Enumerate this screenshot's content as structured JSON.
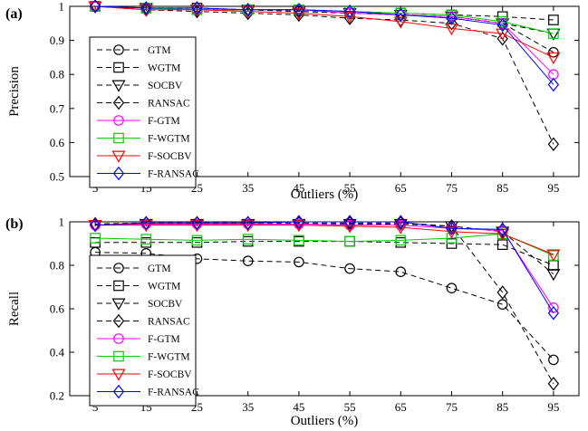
{
  "chart_data": [
    {
      "type": "line",
      "panel_label": "(a)",
      "xlabel": "Outliers (%)",
      "ylabel": "Precision",
      "x": [
        5,
        15,
        25,
        35,
        45,
        55,
        65,
        75,
        85,
        95
      ],
      "xticks": [
        "5",
        "15",
        "25",
        "35",
        "45",
        "55",
        "65",
        "75",
        "85",
        "95"
      ],
      "ylim": [
        0.5,
        1.0
      ],
      "yticks": [
        "0.5",
        "0.6",
        "0.7",
        "0.8",
        "0.9",
        "1"
      ],
      "grid": false,
      "legend_position": "lower-left",
      "series": [
        {
          "name": "GTM",
          "color": "#000000",
          "dashed": true,
          "marker": "circle",
          "values": [
            1.0,
            0.995,
            0.99,
            0.99,
            0.985,
            0.98,
            0.975,
            0.97,
            0.95,
            0.865
          ]
        },
        {
          "name": "WGTM",
          "color": "#000000",
          "dashed": true,
          "marker": "square",
          "values": [
            1.0,
            0.995,
            0.995,
            0.99,
            0.99,
            0.985,
            0.98,
            0.975,
            0.97,
            0.96
          ]
        },
        {
          "name": "SOCBV",
          "color": "#000000",
          "dashed": true,
          "marker": "triangle-down",
          "values": [
            1.0,
            0.995,
            0.99,
            0.99,
            0.985,
            0.98,
            0.975,
            0.97,
            0.95,
            0.92
          ]
        },
        {
          "name": "RANSAC",
          "color": "#000000",
          "dashed": true,
          "marker": "diamond",
          "values": [
            1.0,
            0.99,
            0.985,
            0.98,
            0.975,
            0.965,
            0.96,
            0.95,
            0.905,
            0.595
          ]
        },
        {
          "name": "F-GTM",
          "color": "#ff00ff",
          "dashed": false,
          "marker": "circle",
          "values": [
            1.0,
            0.995,
            0.99,
            0.99,
            0.99,
            0.98,
            0.975,
            0.97,
            0.95,
            0.8
          ]
        },
        {
          "name": "F-WGTM",
          "color": "#00cc00",
          "dashed": false,
          "marker": "square",
          "values": [
            1.0,
            0.995,
            0.99,
            0.99,
            0.99,
            0.985,
            0.98,
            0.975,
            0.955,
            0.92
          ]
        },
        {
          "name": "F-SOCBV",
          "color": "#ff0000",
          "dashed": false,
          "marker": "triangle-down",
          "values": [
            1.0,
            0.99,
            0.99,
            0.985,
            0.98,
            0.97,
            0.955,
            0.935,
            0.92,
            0.85
          ]
        },
        {
          "name": "F-RANSAC",
          "color": "#0000ff",
          "dashed": false,
          "marker": "diamond",
          "values": [
            1.0,
            0.995,
            0.995,
            0.99,
            0.99,
            0.985,
            0.975,
            0.965,
            0.945,
            0.77
          ]
        }
      ]
    },
    {
      "type": "line",
      "panel_label": "(b)",
      "xlabel": "Outliers (%)",
      "ylabel": "Recall",
      "x": [
        5,
        15,
        25,
        35,
        45,
        55,
        65,
        75,
        85,
        95
      ],
      "xticks": [
        "5",
        "15",
        "25",
        "35",
        "45",
        "55",
        "65",
        "75",
        "85",
        "95"
      ],
      "ylim": [
        0.2,
        1.0
      ],
      "yticks": [
        "0.2",
        "0.4",
        "0.6",
        "0.8",
        "1"
      ],
      "grid": false,
      "legend_position": "lower-left",
      "series": [
        {
          "name": "GTM",
          "color": "#000000",
          "dashed": true,
          "marker": "circle",
          "values": [
            0.86,
            0.855,
            0.83,
            0.82,
            0.815,
            0.785,
            0.77,
            0.695,
            0.62,
            0.365
          ]
        },
        {
          "name": "WGTM",
          "color": "#000000",
          "dashed": true,
          "marker": "square",
          "values": [
            0.905,
            0.905,
            0.905,
            0.91,
            0.91,
            0.91,
            0.905,
            0.9,
            0.895,
            0.8
          ]
        },
        {
          "name": "SOCBV",
          "color": "#000000",
          "dashed": true,
          "marker": "triangle-down",
          "values": [
            0.985,
            0.99,
            0.99,
            0.99,
            0.99,
            0.99,
            0.99,
            0.98,
            0.955,
            0.76
          ]
        },
        {
          "name": "RANSAC",
          "color": "#000000",
          "dashed": true,
          "marker": "diamond",
          "values": [
            0.99,
            0.995,
            0.995,
            0.995,
            0.995,
            0.995,
            0.995,
            0.98,
            0.675,
            0.255
          ]
        },
        {
          "name": "F-GTM",
          "color": "#ff00ff",
          "dashed": false,
          "marker": "circle",
          "values": [
            0.985,
            0.99,
            0.99,
            0.99,
            0.99,
            0.985,
            0.985,
            0.97,
            0.96,
            0.605
          ]
        },
        {
          "name": "F-WGTM",
          "color": "#00cc00",
          "dashed": false,
          "marker": "square",
          "values": [
            0.925,
            0.92,
            0.915,
            0.92,
            0.915,
            0.91,
            0.915,
            0.925,
            0.945,
            0.845
          ]
        },
        {
          "name": "F-SOCBV",
          "color": "#ff0000",
          "dashed": false,
          "marker": "triangle-down",
          "values": [
            0.985,
            0.985,
            0.985,
            0.985,
            0.985,
            0.98,
            0.975,
            0.955,
            0.945,
            0.85
          ]
        },
        {
          "name": "F-RANSAC",
          "color": "#0000ff",
          "dashed": false,
          "marker": "diamond",
          "values": [
            0.985,
            0.995,
            0.995,
            0.995,
            1.0,
            1.0,
            1.0,
            0.97,
            0.965,
            0.58
          ]
        }
      ]
    }
  ]
}
